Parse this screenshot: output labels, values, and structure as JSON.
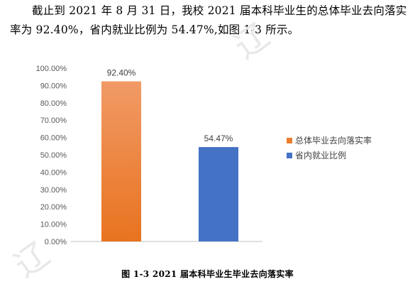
{
  "paragraph": "截止到 2021 年 8 月 31 日，我校 2021 届本科毕业生的总体毕业去向落实率为 92.40%，省内就业比例为 54.47%,如图 1-3 所示。",
  "caption": "图 1-3    2021 届本科毕业生毕业去向落实率",
  "watermarks": [
    "辽",
    "辽"
  ],
  "chart_data": {
    "type": "bar",
    "title": "",
    "xlabel": "",
    "ylabel": "",
    "categories": [
      "总体毕业去向落实率",
      "省内就业比例"
    ],
    "values": [
      92.4,
      54.47
    ],
    "value_labels": [
      "92.40%",
      "54.47%"
    ],
    "yticks": [
      "0.00%",
      "10.00%",
      "20.00%",
      "30.00%",
      "40.00%",
      "50.00%",
      "60.00%",
      "70.00%",
      "80.00%",
      "90.00%",
      "100.00%"
    ],
    "ylim": [
      0,
      100
    ],
    "grid": false,
    "legend_position": "right",
    "colors": [
      "#ED7D31",
      "#4472C4"
    ],
    "gradient_top": "#F19A66",
    "gradient_bottom": "#E8731F"
  }
}
